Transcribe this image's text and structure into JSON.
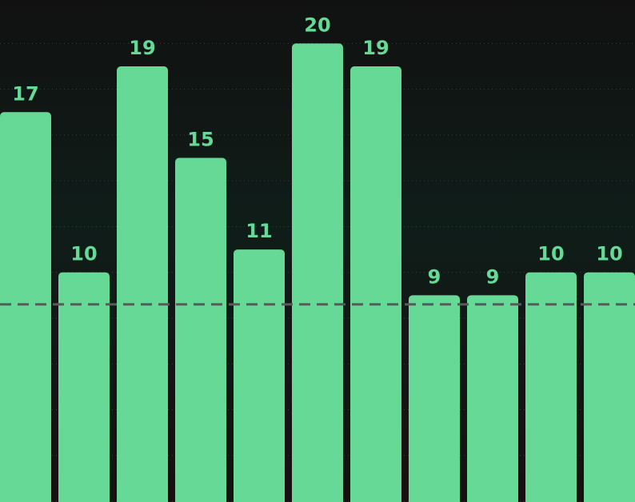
{
  "chart_data": {
    "type": "bar",
    "values": [
      17,
      10,
      19,
      15,
      11,
      20,
      19,
      9,
      9,
      10,
      10
    ],
    "color": "#66d996",
    "ylim": [
      0,
      21.9
    ],
    "yticks": [
      0,
      2,
      4,
      6,
      8,
      10,
      12,
      14,
      16,
      18,
      20
    ],
    "grid": true,
    "reference_line": 8.6,
    "reference_line_color": "#5a5a5a"
  }
}
